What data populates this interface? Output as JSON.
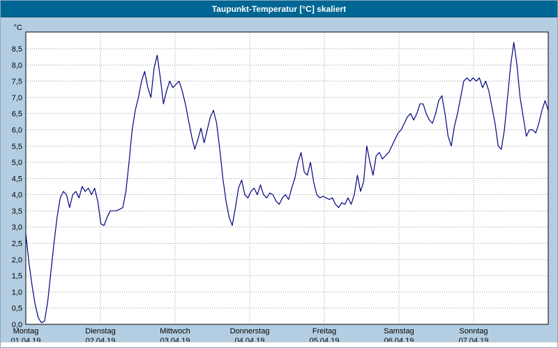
{
  "window": {
    "title": "Taupunkt-Temperatur [°C] skaliert"
  },
  "colors": {
    "title_bar_bg": "#006694",
    "panel_bg": "#b3cee2",
    "plot_bg": "#ffffff",
    "grid": "#9a9a9a",
    "axis_border": "#000000",
    "line": "#000080",
    "text": "#000000"
  },
  "chart_data": {
    "type": "line",
    "title": "Taupunkt-Temperatur [°C] skaliert",
    "ylabel": "°C",
    "xlabel": "",
    "ylim": [
      0,
      8.5
    ],
    "ytick_step": 0.5,
    "grid": true,
    "legend": "none",
    "ytick_values": [
      0,
      0.5,
      1,
      1.5,
      2,
      2.5,
      3,
      3.5,
      4,
      4.5,
      5,
      5.5,
      6,
      6.5,
      7,
      7.5,
      8,
      8.5
    ],
    "ytick_labels": [
      "0,0",
      "0,5",
      "1,0",
      "1,5",
      "2,0",
      "2,5",
      "3,0",
      "3,5",
      "4,0",
      "4,5",
      "5,0",
      "5,5",
      "6,0",
      "6,5",
      "7,0",
      "7,5",
      "8,0",
      "8,5"
    ],
    "x_days": [
      {
        "name": "Montag",
        "date": "01.04.19"
      },
      {
        "name": "Dienstag",
        "date": "02.04.19"
      },
      {
        "name": "Mittwoch",
        "date": "03.04.19"
      },
      {
        "name": "Donnerstag",
        "date": "04.04.19"
      },
      {
        "name": "Freitag",
        "date": "05.04.19"
      },
      {
        "name": "Samstag",
        "date": "06.04.19"
      },
      {
        "name": "Sonntag",
        "date": "07.04.19"
      }
    ],
    "series": [
      {
        "name": "Taupunkt-Temperatur",
        "color": "#000080",
        "unit": "°C",
        "sampling": "hourly",
        "values": [
          2.8,
          1.9,
          1.2,
          0.6,
          0.2,
          0.05,
          0.1,
          0.7,
          1.6,
          2.5,
          3.3,
          3.9,
          4.1,
          4.0,
          3.6,
          4.0,
          4.1,
          3.9,
          4.25,
          4.1,
          4.2,
          4.0,
          4.2,
          3.8,
          3.1,
          3.05,
          3.3,
          3.5,
          3.5,
          3.5,
          3.55,
          3.6,
          4.1,
          5.0,
          6.0,
          6.6,
          7.0,
          7.5,
          7.8,
          7.3,
          7.0,
          7.9,
          8.3,
          7.6,
          6.8,
          7.2,
          7.5,
          7.3,
          7.4,
          7.5,
          7.2,
          6.8,
          6.3,
          5.8,
          5.4,
          5.7,
          6.05,
          5.6,
          6.0,
          6.4,
          6.6,
          6.2,
          5.4,
          4.5,
          3.8,
          3.3,
          3.05,
          3.6,
          4.2,
          4.45,
          4.0,
          3.9,
          4.1,
          4.2,
          4.0,
          4.3,
          4.0,
          3.9,
          4.05,
          4.0,
          3.8,
          3.7,
          3.9,
          4.0,
          3.85,
          4.2,
          4.5,
          5.0,
          5.3,
          4.7,
          4.6,
          5.0,
          4.4,
          4.0,
          3.9,
          3.95,
          3.9,
          3.85,
          3.9,
          3.7,
          3.6,
          3.75,
          3.7,
          3.9,
          3.7,
          4.0,
          4.6,
          4.1,
          4.4,
          5.5,
          5.0,
          4.6,
          5.2,
          5.3,
          5.1,
          5.2,
          5.3,
          5.5,
          5.7,
          5.9,
          6.0,
          6.2,
          6.4,
          6.5,
          6.3,
          6.5,
          6.8,
          6.8,
          6.5,
          6.3,
          6.2,
          6.5,
          6.9,
          7.05,
          6.5,
          5.8,
          5.5,
          6.1,
          6.5,
          7.0,
          7.5,
          7.6,
          7.5,
          7.6,
          7.5,
          7.6,
          7.3,
          7.5,
          7.2,
          6.7,
          6.2,
          5.5,
          5.4,
          6.0,
          7.0,
          8.0,
          8.7,
          8.0,
          7.0,
          6.4,
          5.8,
          6.0,
          6.0,
          5.9,
          6.2,
          6.6,
          6.9,
          6.6
        ]
      }
    ]
  }
}
